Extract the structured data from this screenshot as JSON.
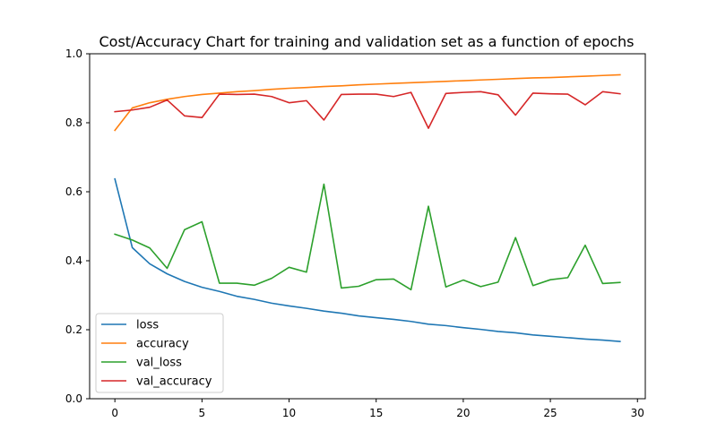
{
  "chart_data": {
    "type": "line",
    "title": "Cost/Accuracy Chart for training and validation set as a function of epochs",
    "xlabel": "",
    "ylabel": "",
    "xlim": [
      -1.45,
      30.45
    ],
    "ylim": [
      0,
      1.0
    ],
    "xticks": [
      0,
      5,
      10,
      15,
      20,
      25,
      30
    ],
    "yticks": [
      0.0,
      0.2,
      0.4,
      0.6,
      0.8,
      1.0
    ],
    "xtick_labels": [
      "0",
      "5",
      "10",
      "15",
      "20",
      "25",
      "30"
    ],
    "ytick_labels": [
      "0.0",
      "0.2",
      "0.4",
      "0.6",
      "0.8",
      "1.0"
    ],
    "grid": false,
    "legend_position": "lower-left",
    "x": [
      0,
      1,
      2,
      3,
      4,
      5,
      6,
      7,
      8,
      9,
      10,
      11,
      12,
      13,
      14,
      15,
      16,
      17,
      18,
      19,
      20,
      21,
      22,
      23,
      24,
      25,
      26,
      27,
      28,
      29
    ],
    "series": [
      {
        "name": "loss",
        "color": "#1f77b4",
        "values": [
          0.637,
          0.438,
          0.391,
          0.362,
          0.34,
          0.323,
          0.311,
          0.297,
          0.288,
          0.277,
          0.269,
          0.262,
          0.254,
          0.248,
          0.24,
          0.235,
          0.23,
          0.224,
          0.216,
          0.212,
          0.206,
          0.201,
          0.195,
          0.191,
          0.185,
          0.181,
          0.177,
          0.173,
          0.17,
          0.166
        ]
      },
      {
        "name": "accuracy",
        "color": "#ff7f0e",
        "values": [
          0.778,
          0.843,
          0.858,
          0.868,
          0.876,
          0.882,
          0.886,
          0.89,
          0.893,
          0.897,
          0.9,
          0.902,
          0.905,
          0.907,
          0.91,
          0.912,
          0.914,
          0.916,
          0.918,
          0.92,
          0.922,
          0.924,
          0.926,
          0.928,
          0.93,
          0.931,
          0.933,
          0.935,
          0.937,
          0.939
        ]
      },
      {
        "name": "val_loss",
        "color": "#2ca02c",
        "values": [
          0.477,
          0.46,
          0.437,
          0.378,
          0.49,
          0.513,
          0.335,
          0.335,
          0.329,
          0.349,
          0.381,
          0.367,
          0.622,
          0.321,
          0.326,
          0.345,
          0.347,
          0.316,
          0.558,
          0.324,
          0.344,
          0.325,
          0.338,
          0.467,
          0.328,
          0.345,
          0.351,
          0.445,
          0.334,
          0.337
        ]
      },
      {
        "name": "val_accuracy",
        "color": "#d62728",
        "values": [
          0.832,
          0.837,
          0.845,
          0.866,
          0.82,
          0.815,
          0.883,
          0.882,
          0.883,
          0.876,
          0.858,
          0.864,
          0.808,
          0.882,
          0.883,
          0.883,
          0.876,
          0.888,
          0.784,
          0.885,
          0.888,
          0.89,
          0.881,
          0.822,
          0.886,
          0.884,
          0.883,
          0.852,
          0.89,
          0.884
        ]
      }
    ]
  }
}
